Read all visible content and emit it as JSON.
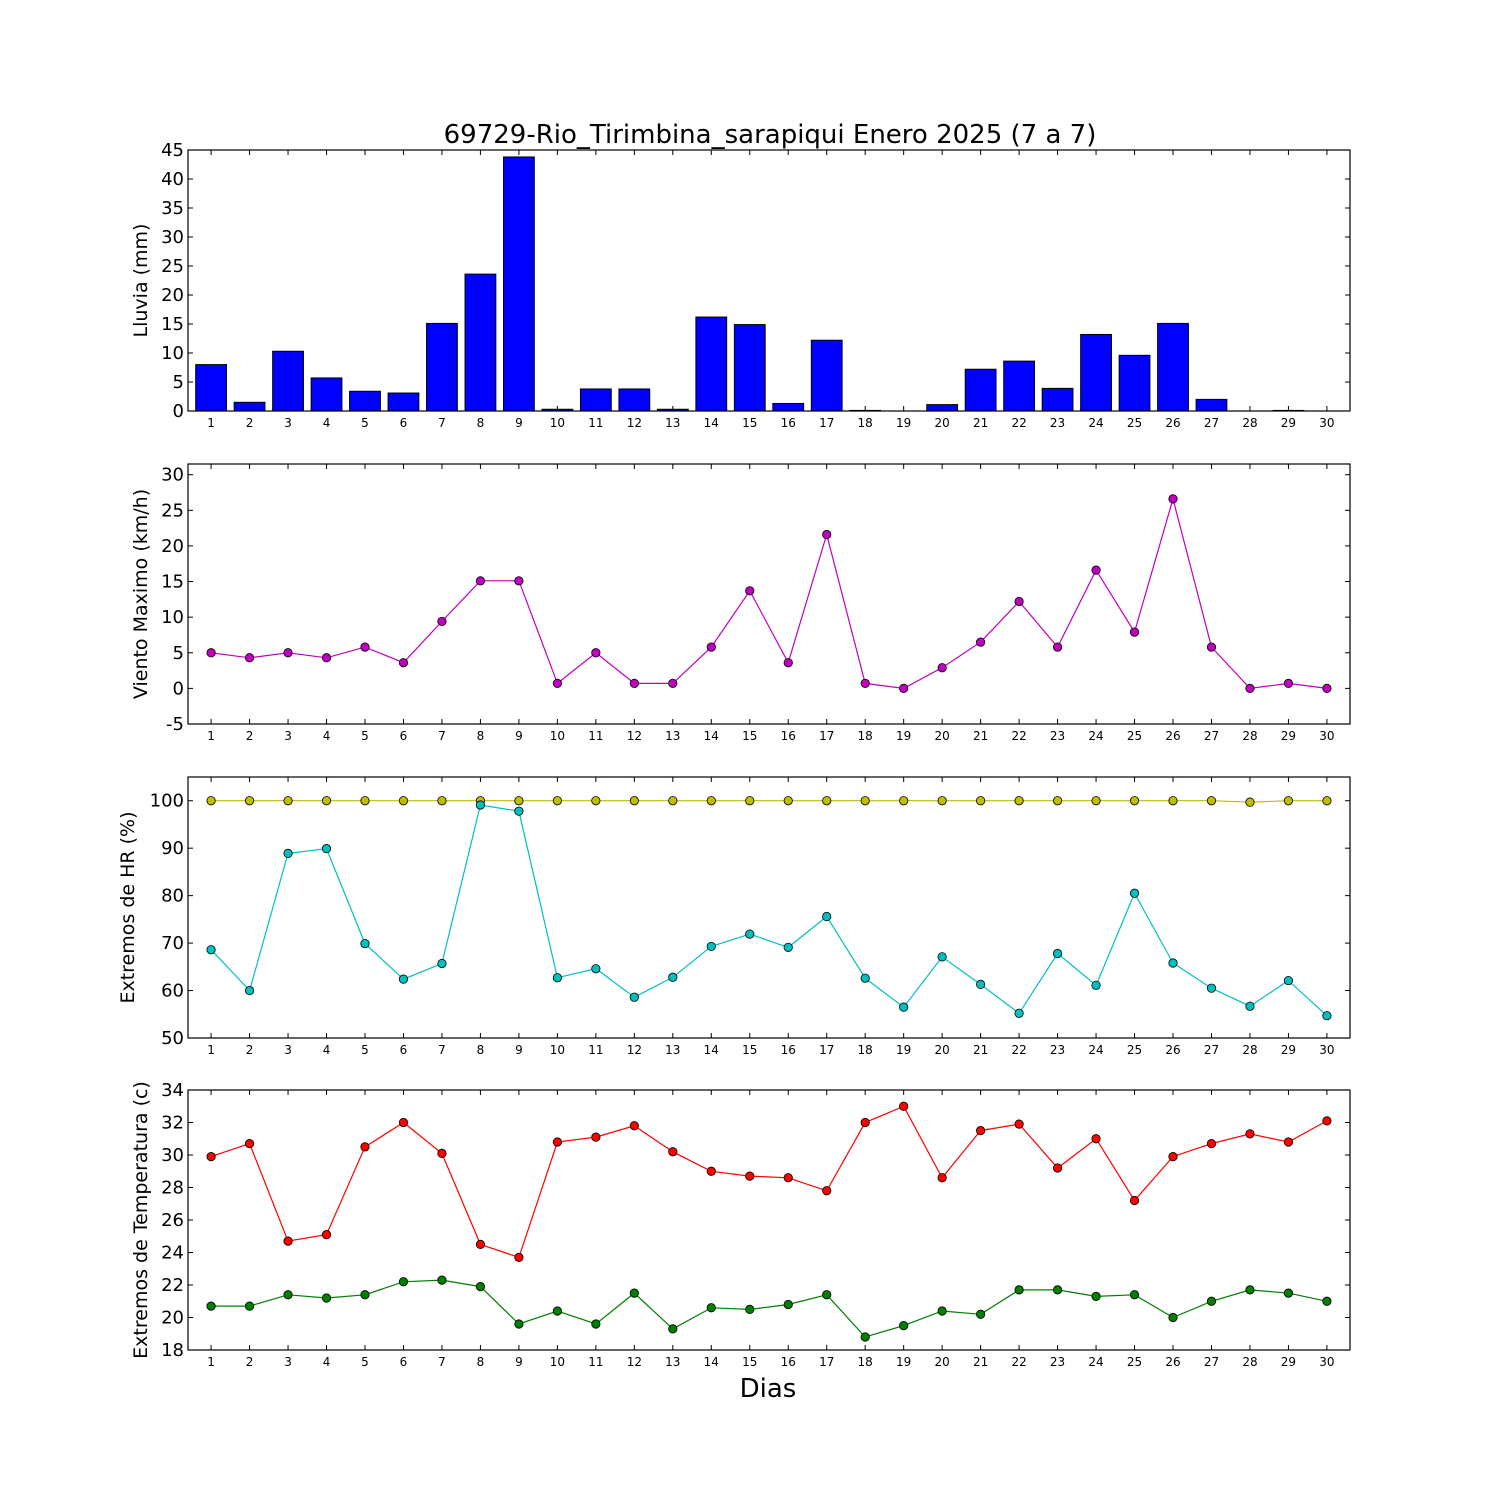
{
  "chart_data": [
    {
      "type": "bar",
      "title": "69729-Rio_Tirimbina_sarapiqui Enero 2025  (7 a 7)",
      "xlabel": "",
      "ylabel": "Lluvia (mm)",
      "ylim": [
        0,
        45
      ],
      "yticks": [
        0,
        5,
        10,
        15,
        20,
        25,
        30,
        35,
        40,
        45
      ],
      "categories": [
        "1",
        "2",
        "3",
        "4",
        "5",
        "6",
        "7",
        "8",
        "9",
        "10",
        "11",
        "12",
        "13",
        "14",
        "15",
        "16",
        "17",
        "18",
        "19",
        "20",
        "21",
        "22",
        "23",
        "24",
        "25",
        "26",
        "27",
        "28",
        "29",
        "30"
      ],
      "color": "#0000ff",
      "values": [
        8.0,
        1.5,
        10.3,
        5.7,
        3.4,
        3.1,
        15.1,
        23.6,
        43.8,
        0.3,
        3.8,
        3.8,
        0.3,
        16.2,
        14.9,
        1.3,
        12.2,
        0.1,
        0.0,
        1.1,
        7.2,
        8.6,
        3.9,
        13.2,
        9.6,
        15.1,
        2.0,
        0.0,
        0.1,
        0.0
      ]
    },
    {
      "type": "line",
      "ylabel": "Viento Maximo (km/h)",
      "ylim": [
        -5,
        31.5
      ],
      "yticks": [
        -5,
        0,
        5,
        10,
        15,
        20,
        25,
        30
      ],
      "categories": [
        "1",
        "2",
        "3",
        "4",
        "5",
        "6",
        "7",
        "8",
        "9",
        "10",
        "11",
        "12",
        "13",
        "14",
        "15",
        "16",
        "17",
        "18",
        "19",
        "20",
        "21",
        "22",
        "23",
        "24",
        "25",
        "26",
        "27",
        "28",
        "29",
        "30"
      ],
      "series": [
        {
          "color": "#bf00bf",
          "values": [
            5.0,
            4.3,
            5.0,
            4.3,
            5.8,
            3.6,
            9.4,
            15.1,
            15.1,
            0.7,
            5.0,
            0.7,
            0.7,
            5.8,
            13.7,
            3.6,
            21.6,
            0.7,
            0.0,
            2.9,
            6.5,
            12.2,
            5.8,
            16.6,
            7.9,
            26.6,
            5.8,
            0.0,
            0.7,
            0.0
          ]
        }
      ]
    },
    {
      "type": "line",
      "ylabel": "Extremos de HR (%)",
      "ylim": [
        50,
        105
      ],
      "yticks": [
        50,
        60,
        70,
        80,
        90,
        100
      ],
      "categories": [
        "1",
        "2",
        "3",
        "4",
        "5",
        "6",
        "7",
        "8",
        "9",
        "10",
        "11",
        "12",
        "13",
        "14",
        "15",
        "16",
        "17",
        "18",
        "19",
        "20",
        "21",
        "22",
        "23",
        "24",
        "25",
        "26",
        "27",
        "28",
        "29",
        "30"
      ],
      "series": [
        {
          "color": "#bfbf00",
          "values": [
            100,
            100,
            100,
            100,
            100,
            100,
            100,
            100,
            100,
            100,
            100,
            100,
            100,
            100,
            100,
            100,
            100,
            100,
            100,
            100,
            100,
            100,
            100,
            100,
            100,
            100,
            100,
            99.7,
            100,
            100
          ]
        },
        {
          "color": "#00bfbf",
          "values": [
            68.6,
            60.0,
            88.9,
            89.9,
            69.9,
            62.4,
            65.7,
            99.1,
            97.8,
            62.7,
            64.6,
            58.6,
            62.8,
            69.3,
            71.9,
            69.1,
            75.6,
            62.6,
            56.5,
            67.1,
            61.3,
            55.2,
            67.8,
            61.1,
            80.5,
            65.8,
            60.5,
            56.7,
            62.1,
            54.7
          ]
        }
      ]
    },
    {
      "type": "line",
      "ylabel": "Extremos de Temperatura (c)",
      "xlabel": "Dias",
      "ylim": [
        18,
        34
      ],
      "yticks": [
        18,
        20,
        22,
        24,
        26,
        28,
        30,
        32,
        34
      ],
      "categories": [
        "1",
        "2",
        "3",
        "4",
        "5",
        "6",
        "7",
        "8",
        "9",
        "10",
        "11",
        "12",
        "13",
        "14",
        "15",
        "16",
        "17",
        "18",
        "19",
        "20",
        "21",
        "22",
        "23",
        "24",
        "25",
        "26",
        "27",
        "28",
        "29",
        "30"
      ],
      "series": [
        {
          "color": "#ff0000",
          "values": [
            29.9,
            30.7,
            24.7,
            25.1,
            30.5,
            32.0,
            30.1,
            24.5,
            23.7,
            30.8,
            31.1,
            31.8,
            30.2,
            29.0,
            28.7,
            28.6,
            27.8,
            32.0,
            33.0,
            28.6,
            31.5,
            31.9,
            29.2,
            31.0,
            27.2,
            29.9,
            30.7,
            31.3,
            30.8,
            32.1
          ]
        },
        {
          "color": "#007f00",
          "values": [
            20.7,
            20.7,
            21.4,
            21.2,
            21.4,
            22.2,
            22.3,
            21.9,
            19.6,
            20.4,
            19.6,
            21.5,
            19.3,
            20.6,
            20.5,
            20.8,
            21.4,
            18.8,
            19.5,
            20.4,
            20.2,
            21.7,
            21.7,
            21.3,
            21.4,
            20.0,
            21.0,
            21.7,
            21.5,
            21.0
          ]
        }
      ]
    }
  ]
}
